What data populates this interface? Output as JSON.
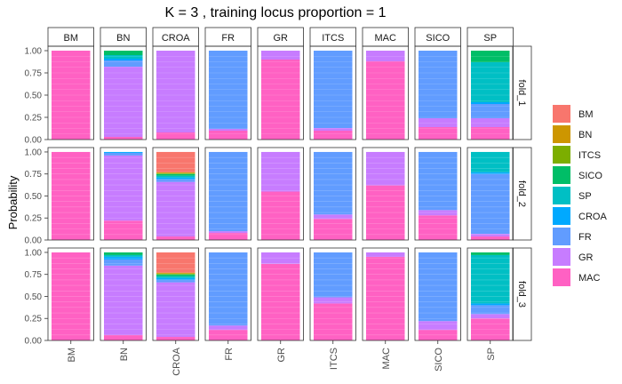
{
  "chart_data": {
    "type": "bar",
    "title": "K = 3  , training locus proportion = 1",
    "ylabel": "Probability",
    "xlabel": "",
    "ylim": [
      0,
      1.05
    ],
    "yticks": [
      "0.00",
      "0.25",
      "0.50",
      "0.75",
      "1.00"
    ],
    "ytick_values": [
      0,
      0.25,
      0.5,
      0.75,
      1.0
    ],
    "columns": [
      "BM",
      "BN",
      "CROA",
      "FR",
      "GR",
      "ITCS",
      "MAC",
      "SICO",
      "SP"
    ],
    "rows": [
      "fold_1",
      "fold_2",
      "fold_3"
    ],
    "legend": {
      "position": "right",
      "entries": [
        {
          "name": "BM",
          "color": "#F8766D"
        },
        {
          "name": "BN",
          "color": "#CD9600"
        },
        {
          "name": "ITCS",
          "color": "#7CAE00"
        },
        {
          "name": "SICO",
          "color": "#00BE67"
        },
        {
          "name": "SP",
          "color": "#00BFC4"
        },
        {
          "name": "CROA",
          "color": "#00A9FF"
        },
        {
          "name": "FR",
          "color": "#619CFF"
        },
        {
          "name": "GR",
          "color": "#C77CFF"
        },
        {
          "name": "MAC",
          "color": "#FF61C3"
        }
      ]
    },
    "stack_order_bottom_to_top": [
      "MAC",
      "GR",
      "FR",
      "CROA",
      "SP",
      "SICO",
      "ITCS",
      "BN",
      "BM"
    ],
    "panels": {
      "fold_1": {
        "BM": {
          "MAC": 1.0
        },
        "BN": {
          "MAC": 0.03,
          "GR": 0.79,
          "FR": 0.07,
          "CROA": 0.02,
          "SP": 0.04,
          "SICO": 0.05
        },
        "CROA": {
          "MAC": 0.08,
          "GR": 0.92
        },
        "FR": {
          "MAC": 0.1,
          "GR": 0.02,
          "FR": 0.88
        },
        "GR": {
          "MAC": 0.9,
          "GR": 0.1
        },
        "ITCS": {
          "MAC": 0.1,
          "GR": 0.03,
          "FR": 0.87
        },
        "MAC": {
          "MAC": 0.88,
          "GR": 0.12
        },
        "SICO": {
          "MAC": 0.14,
          "GR": 0.1,
          "FR": 0.76
        },
        "SP": {
          "MAC": 0.14,
          "GR": 0.1,
          "FR": 0.16,
          "CROA": 0.02,
          "SP": 0.45,
          "SICO": 0.13
        }
      },
      "fold_2": {
        "BM": {
          "MAC": 1.0
        },
        "BN": {
          "MAC": 0.22,
          "GR": 0.74,
          "FR": 0.03,
          "CROA": 0.01
        },
        "CROA": {
          "MAC": 0.04,
          "GR": 0.62,
          "FR": 0.03,
          "CROA": 0.02,
          "SP": 0.02,
          "SICO": 0.02,
          "ITCS": 0.01,
          "BN": 0.01,
          "BM": 0.23
        },
        "FR": {
          "MAC": 0.08,
          "GR": 0.02,
          "FR": 0.9
        },
        "GR": {
          "MAC": 0.55,
          "GR": 0.45
        },
        "ITCS": {
          "MAC": 0.24,
          "GR": 0.05,
          "FR": 0.71
        },
        "MAC": {
          "MAC": 0.62,
          "GR": 0.38
        },
        "SICO": {
          "MAC": 0.28,
          "GR": 0.06,
          "FR": 0.66
        },
        "SP": {
          "MAC": 0.04,
          "GR": 0.03,
          "FR": 0.68,
          "CROA": 0.02,
          "SP": 0.23
        }
      },
      "fold_3": {
        "BM": {
          "MAC": 1.0
        },
        "BN": {
          "MAC": 0.06,
          "GR": 0.79,
          "FR": 0.07,
          "CROA": 0.03,
          "SP": 0.02,
          "SICO": 0.03
        },
        "CROA": {
          "MAC": 0.04,
          "GR": 0.62,
          "FR": 0.03,
          "CROA": 0.02,
          "SP": 0.02,
          "SICO": 0.02,
          "ITCS": 0.01,
          "BN": 0.01,
          "BM": 0.23
        },
        "FR": {
          "MAC": 0.12,
          "GR": 0.05,
          "FR": 0.83
        },
        "GR": {
          "MAC": 0.87,
          "GR": 0.13
        },
        "ITCS": {
          "MAC": 0.42,
          "GR": 0.07,
          "FR": 0.51
        },
        "MAC": {
          "MAC": 0.95,
          "GR": 0.05
        },
        "SICO": {
          "MAC": 0.12,
          "GR": 0.1,
          "FR": 0.78
        },
        "SP": {
          "MAC": 0.25,
          "GR": 0.05,
          "FR": 0.1,
          "CROA": 0.02,
          "SP": 0.55,
          "SICO": 0.03
        }
      }
    }
  }
}
